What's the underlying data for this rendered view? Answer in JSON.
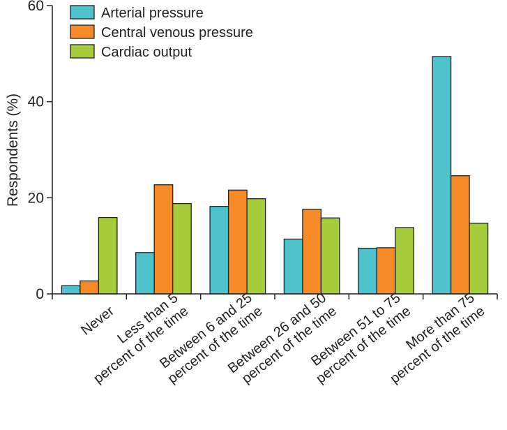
{
  "chart_data": {
    "type": "bar",
    "ylabel": "Respondents (%)",
    "ylim": [
      0,
      60
    ],
    "yticks": [
      0,
      20,
      40,
      60
    ],
    "grid": false,
    "legend_position": "top-left",
    "categories": [
      [
        "Never"
      ],
      [
        "Less than 5",
        "percent of the time"
      ],
      [
        "Between 6 and 25",
        "percent of the time"
      ],
      [
        "Between 26 and 50",
        "percent of the time"
      ],
      [
        "Between 51 to 75",
        "percent of the time"
      ],
      [
        "More than 75",
        "percent of the time"
      ]
    ],
    "series": [
      {
        "name": "Arterial pressure",
        "color": "#4fc3cc",
        "values": [
          1.7,
          8.6,
          18.2,
          11.4,
          9.5,
          49.4
        ]
      },
      {
        "name": "Central venous pressure",
        "color": "#f58a27",
        "values": [
          2.7,
          22.7,
          21.6,
          17.6,
          9.6,
          24.6
        ]
      },
      {
        "name": "Cardiac output",
        "color": "#a6cc3c",
        "values": [
          15.9,
          18.8,
          19.8,
          15.8,
          13.8,
          14.7
        ]
      }
    ]
  }
}
